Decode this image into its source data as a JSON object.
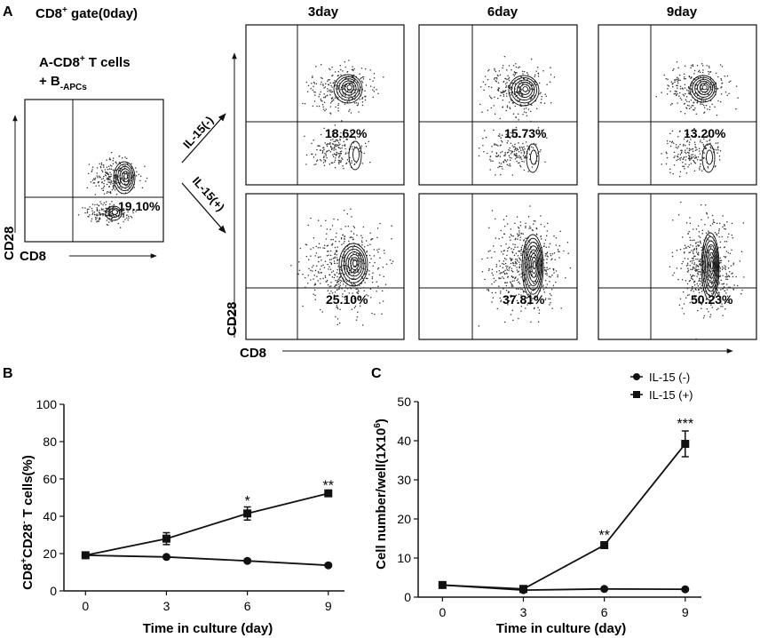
{
  "panel_a": {
    "label": "A",
    "gate_title": "CD8",
    "gate_title_sup": "+",
    "gate_title_rest": " gate(0day)",
    "subtitle_line1": "A-CD8",
    "subtitle_line1_sup": "+",
    "subtitle_line1_rest": " T cells",
    "subtitle_line2": "+ B",
    "subtitle_line2_sub": "-APCs",
    "day0_value": "19.10%",
    "day_labels": [
      "3day",
      "6day",
      "9day"
    ],
    "arrow_label_minus": "IL-15(-)",
    "arrow_label_plus": "IL-15(+)",
    "il15_minus_values": [
      "18.62%",
      "15.73%",
      "13.20%"
    ],
    "il15_plus_values": [
      "25.10%",
      "37.81%",
      "50.23%"
    ],
    "axis_y": "CD28",
    "axis_x": "CD8",
    "colors": {
      "ink": "#111111",
      "dots": "#333333"
    }
  },
  "chart_data": [
    {
      "panel": "B",
      "type": "line",
      "x": [
        0,
        3,
        6,
        9
      ],
      "xlim": [
        -0.8,
        9.6
      ],
      "ylim": [
        0,
        100
      ],
      "yticks": [
        0,
        20,
        40,
        60,
        80,
        100
      ],
      "xticks": [
        0,
        3,
        6,
        9
      ],
      "xlabel": "Time in culture (day)",
      "ylabel_main": "CD8",
      "ylabel_sup1": "+",
      "ylabel_mid": "CD28",
      "ylabel_sup2": "-",
      "ylabel_end": " T cells(%)",
      "series": [
        {
          "name": "IL-15 (-)",
          "marker": "circle",
          "values": [
            19.1,
            18.2,
            16.1,
            13.7
          ],
          "errors": [
            0.6,
            0.8,
            0.8,
            0.8
          ]
        },
        {
          "name": "IL-15 (+)",
          "marker": "square",
          "values": [
            19.1,
            28.0,
            41.5,
            52.3
          ],
          "errors": [
            0.6,
            3.2,
            3.5,
            1.0
          ]
        }
      ],
      "annotations": [
        {
          "x": 6,
          "y": 48.5,
          "text": "*"
        },
        {
          "x": 9,
          "y": 57,
          "text": "**"
        }
      ]
    },
    {
      "panel": "C",
      "type": "line",
      "x": [
        0,
        3,
        6,
        9
      ],
      "xlim": [
        -0.9,
        9.6
      ],
      "ylim": [
        0,
        50
      ],
      "yticks": [
        0,
        10,
        20,
        30,
        40,
        50
      ],
      "xticks": [
        0,
        3,
        6,
        9
      ],
      "xlabel": "Time in culture (day)",
      "ylabel_main": "Cell number/well(1X10",
      "ylabel_sup": "6",
      "ylabel_end": ")",
      "legend_position": "top-right",
      "series": [
        {
          "name": "IL-15 (-)",
          "marker": "circle",
          "values": [
            3.1,
            1.8,
            2.1,
            2.0
          ],
          "errors": [
            0.2,
            0.2,
            0.2,
            0.2
          ]
        },
        {
          "name": "IL-15 (+)",
          "marker": "square",
          "values": [
            3.1,
            2.1,
            13.3,
            39.2
          ],
          "errors": [
            0.2,
            0.3,
            0.6,
            3.3
          ]
        }
      ],
      "annotations": [
        {
          "x": 6,
          "y": 16,
          "text": "**"
        },
        {
          "x": 9,
          "y": 44.5,
          "text": "***"
        }
      ]
    }
  ]
}
